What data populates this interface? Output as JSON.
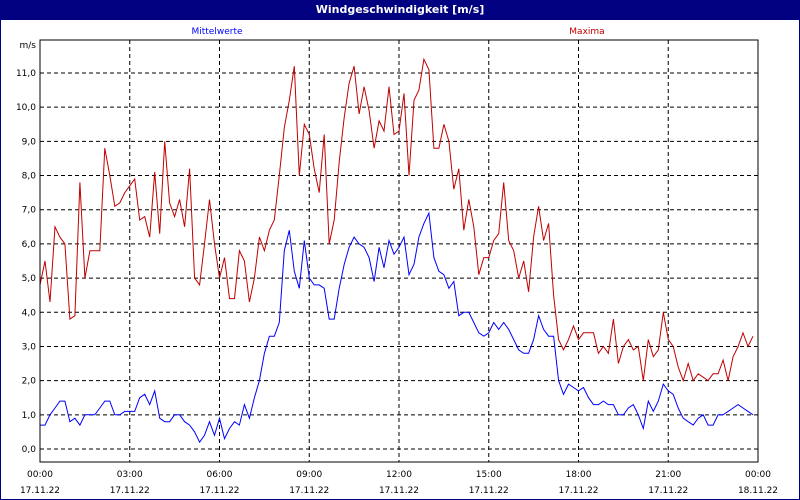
{
  "window": {
    "title": "Windgeschwindigkeit [m/s]"
  },
  "colors": {
    "titlebar": "#000080",
    "mittelwerte": "#0000ff",
    "maxima": "#c00000",
    "grid": "#000000"
  },
  "chart_data": {
    "type": "line",
    "title": "Windgeschwindigkeit [m/s]",
    "ylabel": "m/s",
    "ylim": [
      0,
      11
    ],
    "yticks": [
      "0,0",
      "1,0",
      "2,0",
      "3,0",
      "4,0",
      "5,0",
      "6,0",
      "7,0",
      "8,0",
      "9,0",
      "10,0",
      "11,0"
    ],
    "xlim": [
      "17.11.22 00:00",
      "18.11.22 00:00"
    ],
    "xticks": [
      {
        "time": "00:00",
        "date": "17.11.22"
      },
      {
        "time": "03:00",
        "date": "17.11.22"
      },
      {
        "time": "06:00",
        "date": "17.11.22"
      },
      {
        "time": "09:00",
        "date": "17.11.22"
      },
      {
        "time": "12:00",
        "date": "17.11.22"
      },
      {
        "time": "15:00",
        "date": "17.11.22"
      },
      {
        "time": "18:00",
        "date": "17.11.22"
      },
      {
        "time": "21:00",
        "date": "17.11.22"
      },
      {
        "time": "00:00",
        "date": "18.11.22"
      }
    ],
    "grid": true,
    "legend_placement": "top",
    "x": [
      "00:00",
      "00:10",
      "00:20",
      "00:30",
      "00:40",
      "00:50",
      "01:00",
      "01:10",
      "01:20",
      "01:30",
      "01:40",
      "01:50",
      "02:00",
      "02:10",
      "02:20",
      "02:30",
      "02:40",
      "02:50",
      "03:00",
      "03:10",
      "03:20",
      "03:30",
      "03:40",
      "03:50",
      "04:00",
      "04:10",
      "04:20",
      "04:30",
      "04:40",
      "04:50",
      "05:00",
      "05:10",
      "05:20",
      "05:30",
      "05:40",
      "05:50",
      "06:00",
      "06:10",
      "06:20",
      "06:30",
      "06:40",
      "06:50",
      "07:00",
      "07:10",
      "07:20",
      "07:30",
      "07:40",
      "07:50",
      "08:00",
      "08:10",
      "08:20",
      "08:30",
      "08:40",
      "08:50",
      "09:00",
      "09:10",
      "09:20",
      "09:30",
      "09:40",
      "09:50",
      "10:00",
      "10:10",
      "10:20",
      "10:30",
      "10:40",
      "10:50",
      "11:00",
      "11:10",
      "11:20",
      "11:30",
      "11:40",
      "11:50",
      "12:00",
      "12:10",
      "12:20",
      "12:30",
      "12:40",
      "12:50",
      "13:00",
      "13:10",
      "13:20",
      "13:30",
      "13:40",
      "13:50",
      "14:00",
      "14:10",
      "14:20",
      "14:30",
      "14:40",
      "14:50",
      "15:00",
      "15:10",
      "15:20",
      "15:30",
      "15:40",
      "15:50",
      "16:00",
      "16:10",
      "16:20",
      "16:30",
      "16:40",
      "16:50",
      "17:00",
      "17:10",
      "17:20",
      "17:30",
      "17:40",
      "17:50",
      "18:00",
      "18:10",
      "18:20",
      "18:30",
      "18:40",
      "18:50",
      "19:00",
      "19:10",
      "19:20",
      "19:30",
      "19:40",
      "19:50",
      "20:00",
      "20:10",
      "20:20",
      "20:30",
      "20:40",
      "20:50",
      "21:00",
      "21:10",
      "21:20",
      "21:30",
      "21:40",
      "21:50",
      "22:00",
      "22:10",
      "22:20",
      "22:30",
      "22:40",
      "22:50",
      "23:00",
      "23:10",
      "23:20",
      "23:30",
      "23:40",
      "23:50"
    ],
    "series": [
      {
        "name": "Mittelwerte",
        "color": "#0000ff",
        "values": [
          0.7,
          0.7,
          1.0,
          1.2,
          1.4,
          1.4,
          0.8,
          0.9,
          0.7,
          1.0,
          1.0,
          1.0,
          1.2,
          1.4,
          1.4,
          1.0,
          1.0,
          1.1,
          1.1,
          1.1,
          1.5,
          1.6,
          1.3,
          1.7,
          0.9,
          0.8,
          0.8,
          1.0,
          1.0,
          0.8,
          0.7,
          0.5,
          0.2,
          0.4,
          0.8,
          0.4,
          0.9,
          0.3,
          0.6,
          0.8,
          0.7,
          1.3,
          0.9,
          1.5,
          2.0,
          2.8,
          3.3,
          3.3,
          3.7,
          5.8,
          6.4,
          5.2,
          4.7,
          6.1,
          5.0,
          4.8,
          4.8,
          4.7,
          3.8,
          3.8,
          4.7,
          5.4,
          5.9,
          6.2,
          6.0,
          5.9,
          5.6,
          4.9,
          5.9,
          5.3,
          6.1,
          5.7,
          5.9,
          6.2,
          5.1,
          5.4,
          6.2,
          6.6,
          6.9,
          5.6,
          5.2,
          5.1,
          4.7,
          4.9,
          3.9,
          4.0,
          4.0,
          3.7,
          3.4,
          3.3,
          3.4,
          3.7,
          3.5,
          3.7,
          3.5,
          3.2,
          2.9,
          2.8,
          2.8,
          3.2,
          3.9,
          3.5,
          3.3,
          3.3,
          2.0,
          1.6,
          1.9,
          1.8,
          1.7,
          1.8,
          1.5,
          1.3,
          1.3,
          1.4,
          1.3,
          1.3,
          1.0,
          1.0,
          1.2,
          1.3,
          1.0,
          0.6,
          1.4,
          1.1,
          1.4,
          1.9,
          1.7,
          1.6,
          1.2,
          0.9,
          0.8,
          0.7,
          0.9,
          1.0,
          0.7,
          0.7,
          1.0,
          1.0,
          1.1,
          1.2,
          1.3,
          1.2,
          1.1,
          1.0
        ]
      },
      {
        "name": "Maxima",
        "color": "#c00000",
        "values": [
          4.8,
          5.5,
          4.3,
          6.5,
          6.2,
          6.0,
          3.8,
          3.9,
          7.8,
          5.0,
          5.8,
          5.8,
          5.8,
          8.8,
          8.0,
          7.1,
          7.2,
          7.5,
          7.7,
          7.9,
          6.7,
          6.8,
          6.2,
          8.1,
          6.3,
          9.0,
          7.2,
          6.8,
          7.3,
          6.5,
          8.2,
          5.0,
          4.8,
          6.0,
          7.3,
          6.0,
          5.0,
          5.6,
          4.4,
          4.4,
          5.8,
          5.5,
          4.3,
          5.0,
          6.2,
          5.8,
          6.4,
          6.7,
          8.0,
          9.4,
          10.2,
          11.2,
          8.0,
          9.5,
          9.2,
          8.2,
          7.5,
          9.2,
          6.0,
          6.7,
          8.4,
          9.7,
          10.7,
          11.2,
          9.8,
          10.6,
          9.9,
          8.8,
          9.6,
          9.3,
          10.6,
          9.2,
          9.3,
          10.4,
          8.0,
          10.2,
          10.5,
          11.4,
          11.1,
          8.8,
          8.8,
          9.5,
          9.0,
          7.6,
          8.2,
          6.4,
          7.3,
          6.5,
          5.1,
          5.6,
          5.6,
          6.1,
          6.3,
          7.8,
          6.1,
          5.8,
          5.0,
          5.5,
          4.6,
          6.2,
          7.1,
          6.1,
          6.6,
          4.5,
          3.2,
          2.9,
          3.2,
          3.6,
          3.2,
          3.4,
          3.4,
          3.4,
          2.8,
          3.0,
          2.8,
          3.8,
          2.5,
          3.0,
          3.2,
          2.9,
          3.0,
          2.0,
          3.2,
          2.7,
          2.9,
          4.0,
          3.2,
          3.0,
          2.4,
          2.0,
          2.5,
          2.0,
          2.2,
          2.1,
          2.0,
          2.2,
          2.2,
          2.6,
          2.0,
          2.7,
          3.0,
          3.4,
          3.0,
          3.3
        ]
      }
    ]
  }
}
